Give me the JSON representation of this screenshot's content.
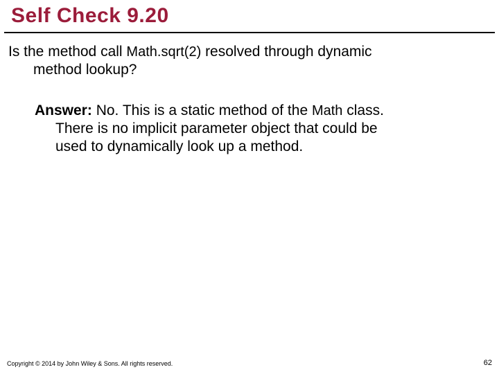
{
  "title": "Self Check 9.20",
  "question": {
    "part1": "Is the method call ",
    "code": "Math.sqrt(2)",
    "part2": " resolved through dynamic",
    "line2": "method lookup?"
  },
  "answer": {
    "label": "Answer:",
    "part1": " No. This is a static method of the ",
    "code": "Math",
    "part2": " class.",
    "line2": "There is no implicit parameter object that could be",
    "line3": "used to dynamically look up a method."
  },
  "footer": {
    "copyright": "Copyright © 2014 by John Wiley & Sons. All rights reserved.",
    "page": "62"
  },
  "colors": {
    "title_color": "#9b1c3a",
    "rule_color": "#000000",
    "text_color": "#000000",
    "background": "#ffffff"
  },
  "typography": {
    "title_fontsize": 30,
    "body_fontsize": 21,
    "footer_fontsize": 9,
    "page_fontsize": 11,
    "title_weight": "bold"
  }
}
